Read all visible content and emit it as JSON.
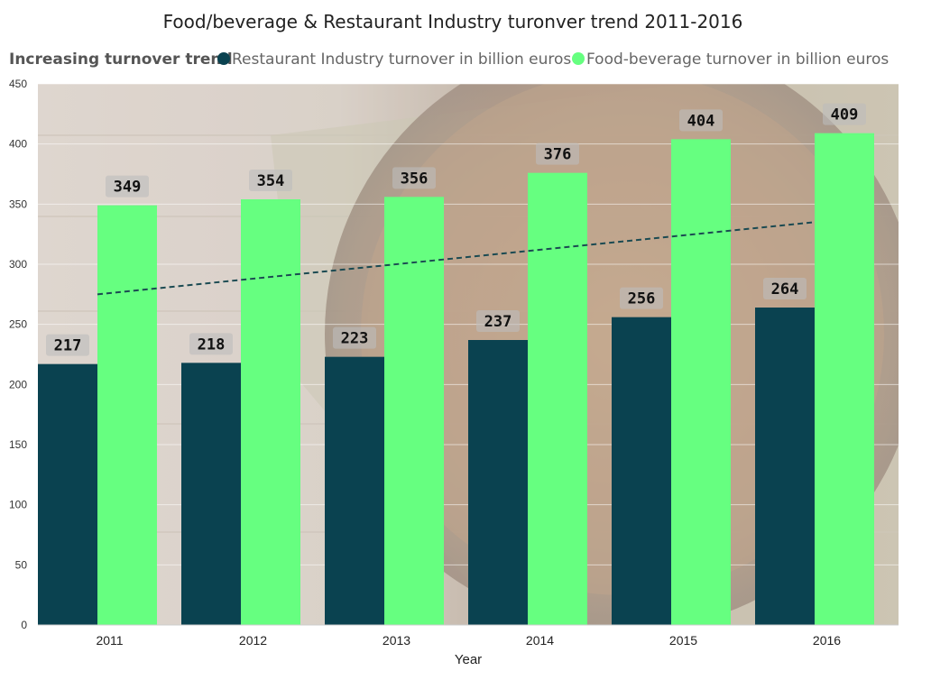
{
  "chart_data": {
    "type": "bar",
    "title": "Food/beverage & Restaurant Industry turonver trend 2011-2016",
    "legend_title": "Increasing turnover trend",
    "legend_position": "top-left",
    "xlabel": "Year",
    "ylabel": "",
    "ylim": [
      0,
      450
    ],
    "yticks": [
      0,
      50,
      100,
      150,
      200,
      250,
      300,
      350,
      400,
      450
    ],
    "categories": [
      "2011",
      "2012",
      "2013",
      "2014",
      "2015",
      "2016"
    ],
    "series": [
      {
        "name": "Restaurant Industry turnover in billion euros",
        "color": "#0a4250",
        "values": [
          217,
          218,
          223,
          237,
          256,
          264
        ]
      },
      {
        "name": "Food-beverage turnover in billion euros",
        "color": "#66ff80",
        "values": [
          349,
          354,
          356,
          376,
          404,
          409
        ]
      }
    ],
    "trendline": {
      "series": "Food-beverage turnover in billion euros",
      "style": "dashed",
      "color": "#1b4a52",
      "start": 275,
      "end": 335
    },
    "grid": true,
    "data_labels": true
  }
}
